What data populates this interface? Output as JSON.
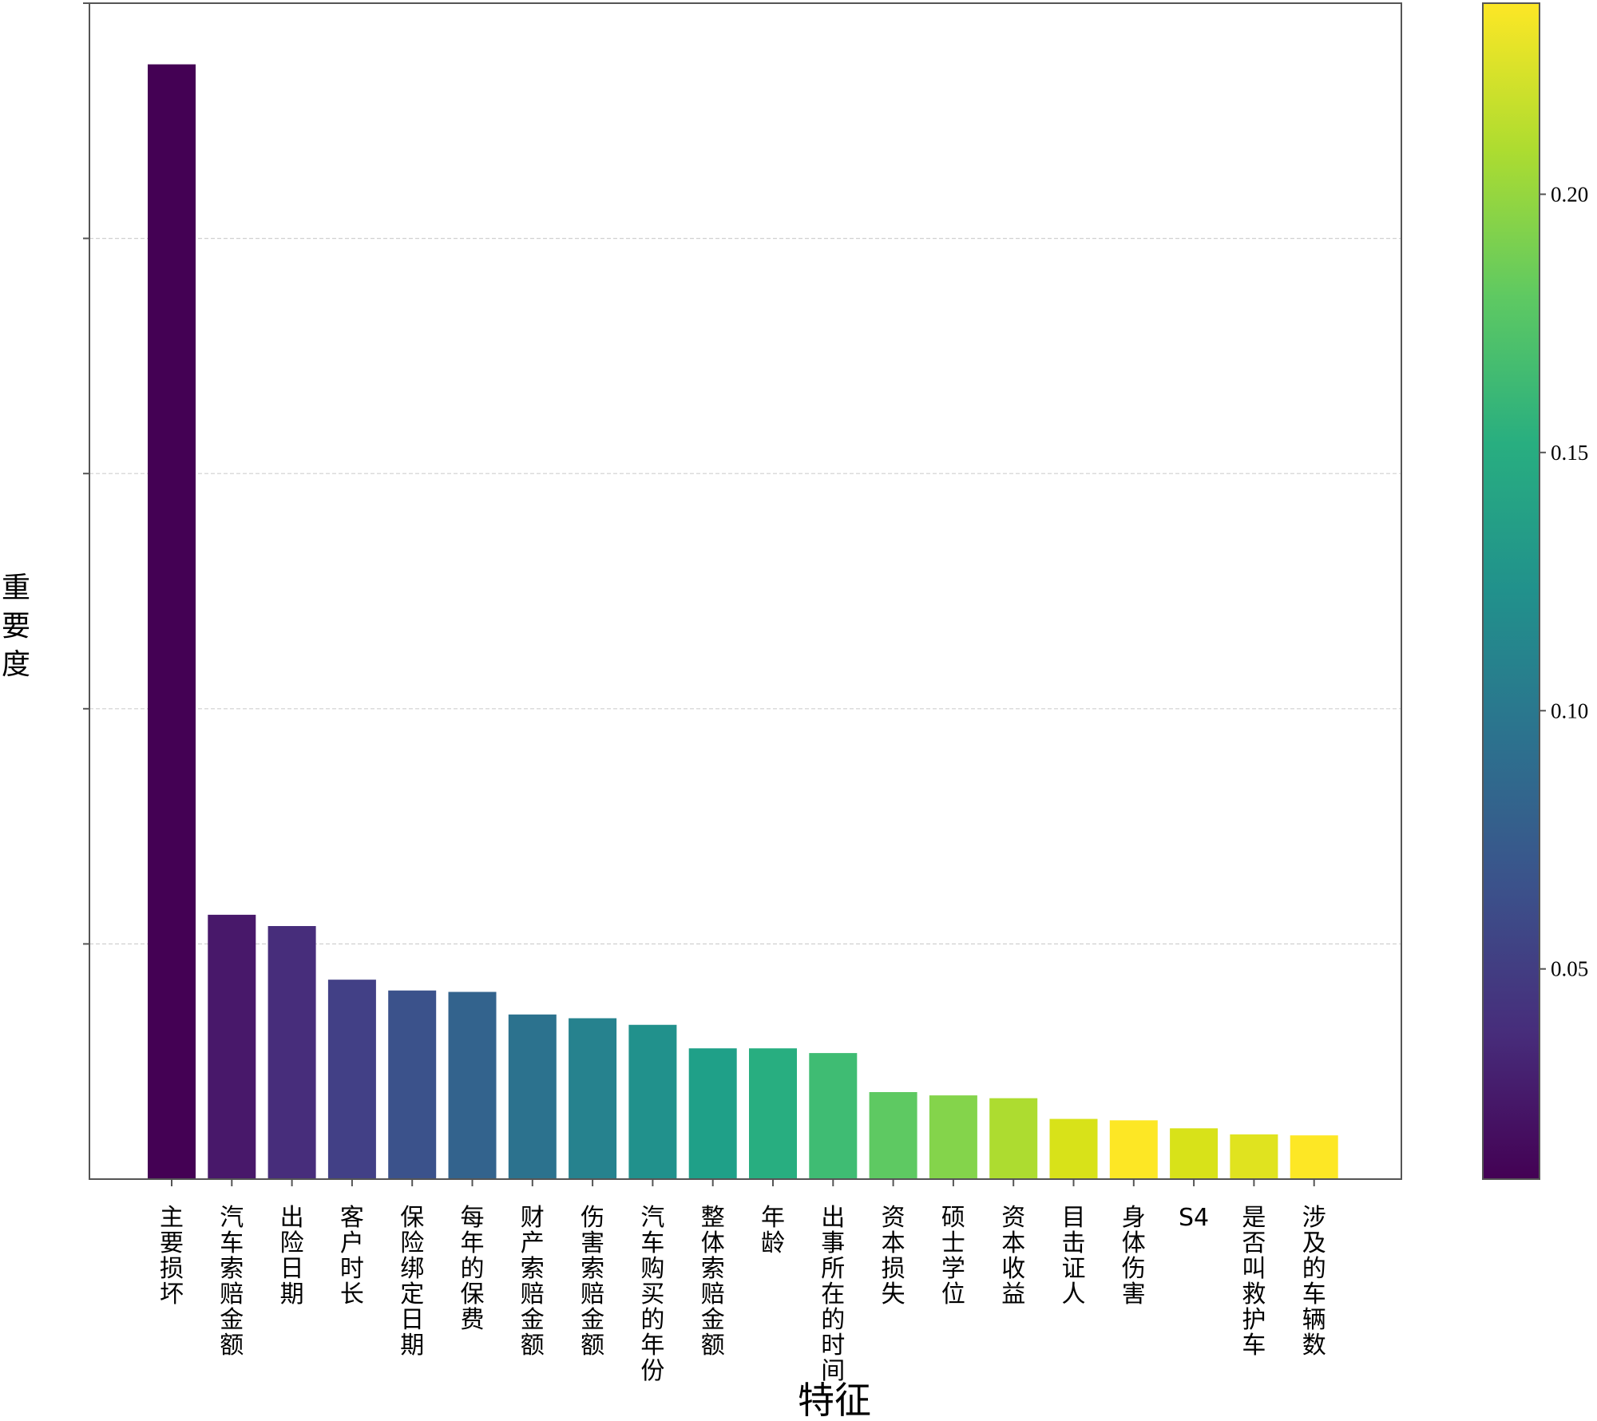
{
  "chart_data": {
    "type": "bar",
    "ylabel": "重要度",
    "xlabel": "特征",
    "categories": [
      "主要损坏",
      "汽车索赔金额",
      "出险日期",
      "客户时长",
      "保险绑定日期",
      "每年的保费",
      "财产索赔金额",
      "伤害索赔金额",
      "汽车购买的年份",
      "整体索赔金额",
      "年龄",
      "出事所在的时间",
      "资本损失",
      "硕士学位",
      "资本收益",
      "目击证人",
      "身体伤害",
      "S4",
      "是否叫救护车",
      "涉及的车辆数"
    ],
    "values": [
      0.237,
      0.0562,
      0.0538,
      0.0424,
      0.0401,
      0.0398,
      0.035,
      0.0342,
      0.0328,
      0.0278,
      0.0278,
      0.0268,
      0.0185,
      0.0178,
      0.0172,
      0.0128,
      0.0125,
      0.0108,
      0.0095,
      0.0093
    ],
    "ylim": [
      0,
      0.25
    ],
    "y_ticks": [
      0.05,
      0.1,
      0.15,
      0.2
    ],
    "grid": true,
    "colorbar": {
      "colormap": "viridis",
      "range": [
        0.0093,
        0.237
      ],
      "ticks": [
        {
          "value": 0.05,
          "label": "0.05"
        },
        {
          "value": 0.1,
          "label": "0.10"
        },
        {
          "value": 0.15,
          "label": "0.15"
        },
        {
          "value": 0.2,
          "label": "0.20"
        }
      ]
    },
    "bar_colors": [
      "#440154",
      "#48186a",
      "#472d7b",
      "#424086",
      "#3b528b",
      "#33638d",
      "#2c728e",
      "#26828e",
      "#21918c",
      "#1fa088",
      "#28ae80",
      "#3fbc73",
      "#5ec962",
      "#84d44b",
      "#addc30",
      "#d8e219",
      "#fde725",
      "#d8e219",
      "#e0e31f",
      "#fde725"
    ]
  }
}
